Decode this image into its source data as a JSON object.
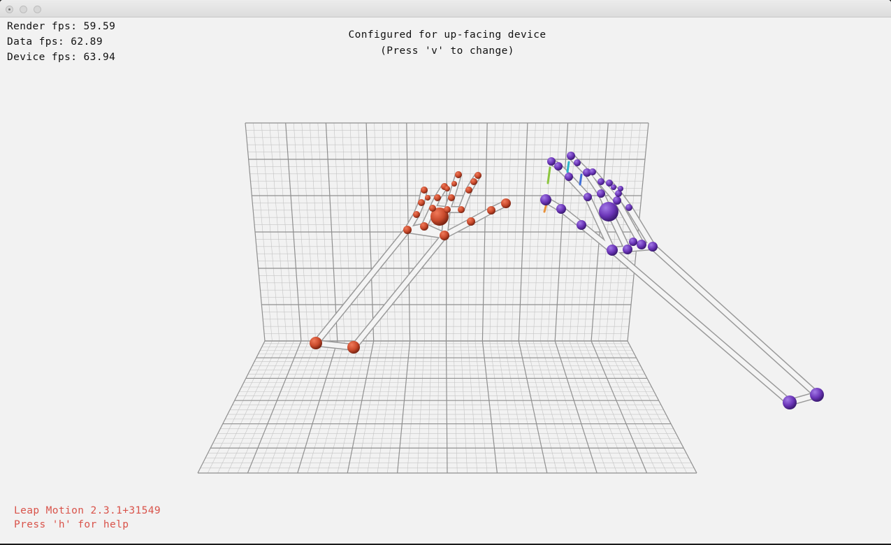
{
  "window": {
    "buttons": [
      "close",
      "minimize",
      "zoom"
    ]
  },
  "stats": {
    "render_fps": "Render fps: 59.59",
    "data_fps": "Data fps: 62.89",
    "device_fps": "Device fps: 63.94"
  },
  "message": {
    "line1": "Configured for up-facing device",
    "line2": "(Press 'v' to change)"
  },
  "footer": {
    "version": "Leap Motion 2.3.1+31549",
    "help": "Press 'h' for help"
  },
  "colors": {
    "left_hand": "#c94a2c",
    "right_hand": "#6b35b8",
    "bones": "#e8e8e8",
    "grid": "#8f8f8f",
    "footer_text": "#d9534a"
  }
}
